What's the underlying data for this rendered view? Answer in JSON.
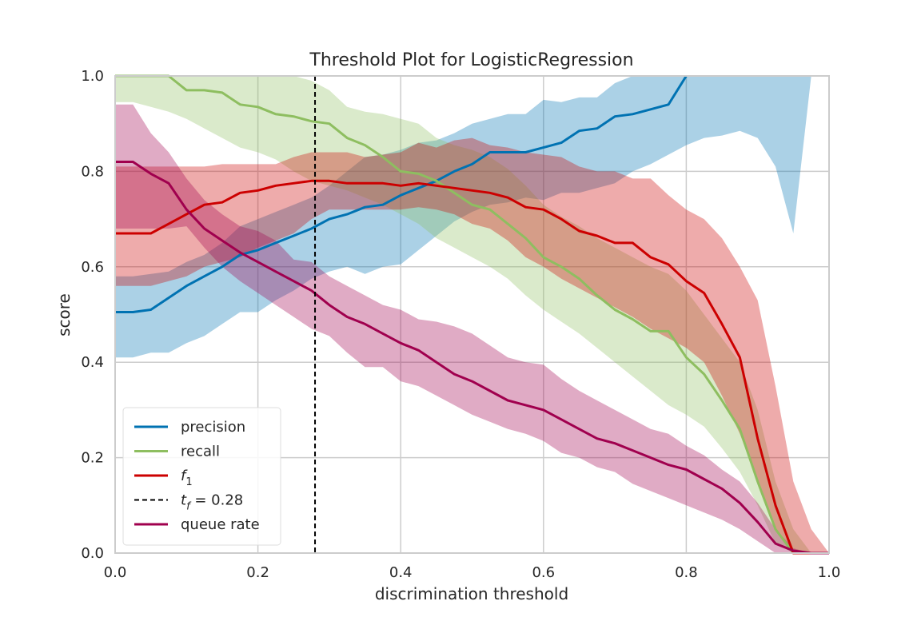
{
  "chart_data": {
    "type": "line",
    "title": "Threshold Plot for LogisticRegression",
    "xlabel": "discrimination threshold",
    "ylabel": "score",
    "xlim": [
      0.0,
      1.0
    ],
    "ylim": [
      0.0,
      1.0
    ],
    "xticks": [
      "0.0",
      "0.2",
      "0.4",
      "0.6",
      "0.8",
      "1.0"
    ],
    "yticks": [
      "0.0",
      "0.2",
      "0.4",
      "0.6",
      "0.8",
      "1.0"
    ],
    "grid": true,
    "legend_position": "lower-left",
    "threshold": {
      "label_base": "t",
      "label_sub": "f",
      "label_value": " = 0.28",
      "value": 0.28,
      "color": "#000000"
    },
    "x": [
      0.0,
      0.025,
      0.05,
      0.075,
      0.1,
      0.125,
      0.15,
      0.175,
      0.2,
      0.225,
      0.25,
      0.275,
      0.3,
      0.325,
      0.35,
      0.375,
      0.4,
      0.425,
      0.45,
      0.475,
      0.5,
      0.525,
      0.55,
      0.575,
      0.6,
      0.625,
      0.65,
      0.675,
      0.7,
      0.725,
      0.75,
      0.775,
      0.8,
      0.825,
      0.85,
      0.875,
      0.9,
      0.925,
      0.95,
      0.975,
      1.0
    ],
    "series": [
      {
        "name": "precision",
        "color": "#0072b2",
        "values": [
          0.505,
          0.505,
          0.51,
          0.535,
          0.56,
          0.58,
          0.6,
          0.625,
          0.635,
          0.65,
          0.665,
          0.68,
          0.7,
          0.71,
          0.725,
          0.73,
          0.75,
          0.765,
          0.78,
          0.8,
          0.815,
          0.84,
          0.84,
          0.84,
          0.85,
          0.86,
          0.885,
          0.89,
          0.915,
          0.92,
          0.93,
          0.94,
          1.0,
          null,
          null,
          null,
          null,
          null,
          null,
          null,
          null
        ],
        "upper": [
          0.58,
          0.58,
          0.585,
          0.59,
          0.61,
          0.625,
          0.65,
          0.685,
          0.7,
          0.715,
          0.73,
          0.745,
          0.77,
          0.8,
          0.83,
          0.835,
          0.845,
          0.86,
          0.865,
          0.88,
          0.9,
          0.91,
          0.92,
          0.92,
          0.95,
          0.945,
          0.955,
          0.955,
          0.985,
          1.0,
          1.0,
          1.0,
          1.0,
          1.0,
          1.0,
          1.0,
          1.0,
          1.0,
          1.0,
          1.0,
          1.0
        ],
        "lower": [
          0.41,
          0.41,
          0.42,
          0.42,
          0.44,
          0.455,
          0.48,
          0.505,
          0.505,
          0.53,
          0.55,
          0.575,
          0.59,
          0.6,
          0.585,
          0.6,
          0.605,
          0.635,
          0.665,
          0.695,
          0.715,
          0.73,
          0.735,
          0.745,
          0.74,
          0.755,
          0.755,
          0.765,
          0.775,
          0.8,
          0.815,
          0.835,
          0.855,
          0.87,
          0.875,
          0.885,
          0.87,
          0.81,
          0.67,
          1.0,
          1.0
        ]
      },
      {
        "name": "recall",
        "color": "#8ebe60",
        "values": [
          1.0,
          1.0,
          1.0,
          1.0,
          0.97,
          0.97,
          0.965,
          0.94,
          0.935,
          0.92,
          0.915,
          0.905,
          0.9,
          0.87,
          0.855,
          0.83,
          0.8,
          0.795,
          0.78,
          0.755,
          0.73,
          0.72,
          0.69,
          0.66,
          0.62,
          0.6,
          0.575,
          0.54,
          0.51,
          0.49,
          0.465,
          0.465,
          0.41,
          0.375,
          0.32,
          0.26,
          0.15,
          0.05,
          0.0,
          0.0,
          0.0
        ],
        "upper": [
          1.0,
          1.0,
          1.0,
          1.0,
          1.0,
          1.0,
          1.0,
          1.0,
          1.0,
          1.0,
          1.0,
          0.99,
          0.97,
          0.935,
          0.925,
          0.92,
          0.91,
          0.9,
          0.87,
          0.855,
          0.845,
          0.83,
          0.805,
          0.77,
          0.73,
          0.705,
          0.685,
          0.66,
          0.64,
          0.62,
          0.6,
          0.585,
          0.55,
          0.5,
          0.45,
          0.4,
          0.3,
          0.15,
          0.05,
          0.0,
          0.0
        ],
        "lower": [
          0.945,
          0.945,
          0.935,
          0.925,
          0.91,
          0.89,
          0.87,
          0.85,
          0.84,
          0.825,
          0.8,
          0.78,
          0.77,
          0.76,
          0.745,
          0.73,
          0.71,
          0.69,
          0.66,
          0.64,
          0.62,
          0.6,
          0.575,
          0.54,
          0.51,
          0.485,
          0.46,
          0.43,
          0.4,
          0.37,
          0.34,
          0.31,
          0.29,
          0.265,
          0.22,
          0.17,
          0.1,
          0.02,
          0.0,
          0.0,
          0.0
        ]
      },
      {
        "name": "f",
        "name_sub": "1",
        "color": "#cc0000",
        "values": [
          0.67,
          0.67,
          0.67,
          0.69,
          0.71,
          0.73,
          0.735,
          0.755,
          0.76,
          0.77,
          0.775,
          0.78,
          0.78,
          0.775,
          0.775,
          0.775,
          0.77,
          0.775,
          0.77,
          0.765,
          0.76,
          0.755,
          0.745,
          0.725,
          0.72,
          0.7,
          0.675,
          0.665,
          0.65,
          0.65,
          0.62,
          0.605,
          0.57,
          0.545,
          0.48,
          0.41,
          0.24,
          0.1,
          0.0,
          0.0,
          0.0
        ],
        "upper": [
          0.81,
          0.81,
          0.81,
          0.81,
          0.81,
          0.81,
          0.815,
          0.815,
          0.815,
          0.815,
          0.83,
          0.84,
          0.84,
          0.84,
          0.83,
          0.835,
          0.84,
          0.86,
          0.85,
          0.865,
          0.87,
          0.855,
          0.85,
          0.84,
          0.835,
          0.83,
          0.81,
          0.8,
          0.8,
          0.785,
          0.785,
          0.75,
          0.72,
          0.7,
          0.66,
          0.6,
          0.53,
          0.35,
          0.15,
          0.05,
          0.0
        ],
        "lower": [
          0.56,
          0.56,
          0.56,
          0.57,
          0.58,
          0.6,
          0.61,
          0.62,
          0.64,
          0.655,
          0.67,
          0.7,
          0.72,
          0.72,
          0.72,
          0.72,
          0.72,
          0.725,
          0.72,
          0.71,
          0.69,
          0.68,
          0.655,
          0.62,
          0.6,
          0.575,
          0.555,
          0.535,
          0.515,
          0.495,
          0.47,
          0.45,
          0.43,
          0.4,
          0.33,
          0.25,
          0.15,
          0.05,
          0.0,
          0.0,
          0.0
        ]
      },
      {
        "name": "queue rate",
        "color": "#a0004e",
        "values": [
          0.82,
          0.82,
          0.795,
          0.775,
          0.72,
          0.68,
          0.655,
          0.63,
          0.61,
          0.59,
          0.57,
          0.55,
          0.52,
          0.495,
          0.48,
          0.46,
          0.44,
          0.425,
          0.4,
          0.375,
          0.36,
          0.34,
          0.32,
          0.31,
          0.3,
          0.28,
          0.26,
          0.24,
          0.23,
          0.215,
          0.2,
          0.185,
          0.175,
          0.155,
          0.135,
          0.105,
          0.065,
          0.02,
          0.005,
          0.0,
          0.0
        ],
        "upper": [
          0.94,
          0.94,
          0.88,
          0.84,
          0.785,
          0.74,
          0.71,
          0.685,
          0.675,
          0.655,
          0.615,
          0.61,
          0.58,
          0.56,
          0.54,
          0.52,
          0.51,
          0.49,
          0.485,
          0.475,
          0.46,
          0.435,
          0.41,
          0.4,
          0.395,
          0.365,
          0.34,
          0.32,
          0.3,
          0.28,
          0.26,
          0.25,
          0.225,
          0.205,
          0.175,
          0.15,
          0.105,
          0.05,
          0.01,
          0.0,
          0.0
        ],
        "lower": [
          0.68,
          0.68,
          0.68,
          0.68,
          0.685,
          0.64,
          0.6,
          0.57,
          0.545,
          0.52,
          0.495,
          0.47,
          0.455,
          0.42,
          0.39,
          0.39,
          0.36,
          0.35,
          0.33,
          0.31,
          0.29,
          0.275,
          0.26,
          0.25,
          0.235,
          0.21,
          0.2,
          0.18,
          0.17,
          0.145,
          0.13,
          0.115,
          0.1,
          0.085,
          0.07,
          0.05,
          0.025,
          0.0,
          0.0,
          0.0,
          0.0
        ]
      }
    ]
  }
}
